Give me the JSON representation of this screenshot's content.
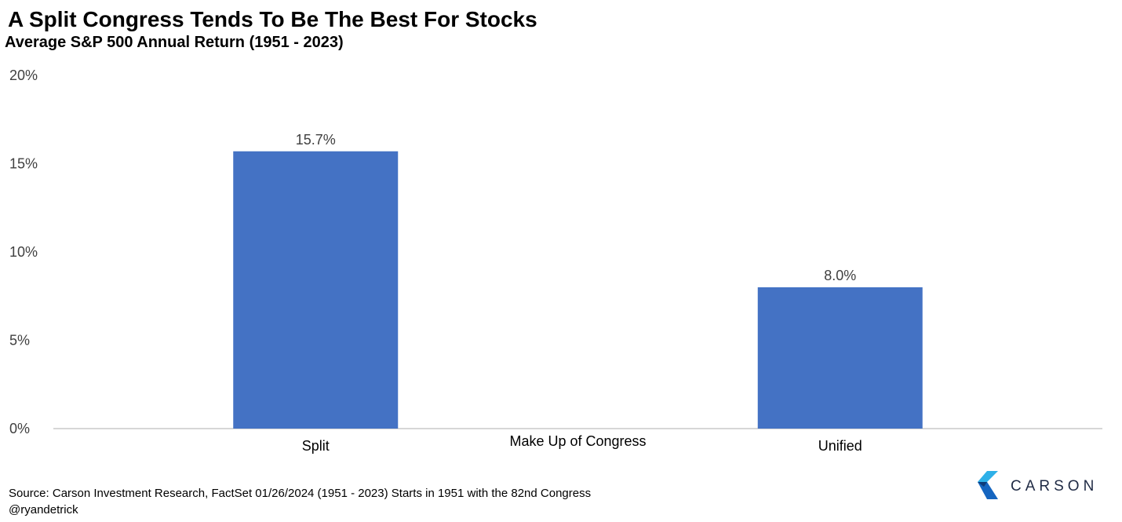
{
  "title": "A Split Congress Tends To Be The Best For Stocks",
  "subtitle": "Average S&P 500 Annual Return (1951 - 2023)",
  "footer": {
    "source": "Source: Carson Investment Research, FactSet   01/26/2024  (1951 - 2023)  Starts in 1951 with the 82nd Congress",
    "handle": "@ryandetrick"
  },
  "logo": {
    "text": "CARSON",
    "icon": "carson-chevron-logo"
  },
  "colors": {
    "bar": "#4472C4",
    "axis": "#BFBFBF",
    "label": "#404040"
  },
  "chart_data": {
    "type": "bar",
    "categories": [
      "Split",
      "Unified"
    ],
    "values": [
      15.7,
      8.0
    ],
    "data_labels": [
      "15.7%",
      "8.0%"
    ],
    "xlabel": "Make Up of Congress",
    "ylabel": "",
    "ylim": [
      0,
      20
    ],
    "yticks": [
      0,
      5,
      10,
      15,
      20
    ],
    "ytick_labels": [
      "0%",
      "5%",
      "10%",
      "15%",
      "20%"
    ],
    "grid": false,
    "legend": "none"
  }
}
